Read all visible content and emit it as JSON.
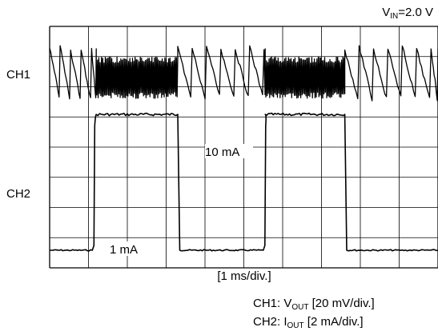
{
  "chart_data": {
    "type": "line",
    "title": "",
    "xlabel": "[1 ms/div.]",
    "x_div_unit": "ms/div.",
    "x_range_div": [
      0,
      10
    ],
    "y_divisions": 8,
    "grid": true,
    "vin": {
      "prefix": "V",
      "sub": "IN",
      "suffix": "=2.0 V"
    },
    "channels": [
      {
        "name": "CH1",
        "label": "CH1",
        "legend": {
          "prefix": "CH1: V",
          "sub": "OUT",
          "suffix": " [20 mV/div.]"
        },
        "scale": "20 mV/div."
      },
      {
        "name": "CH2",
        "label": "CH2",
        "legend": {
          "prefix": "CH2: I",
          "sub": "OUT",
          "suffix": " [2 mA/div.]"
        },
        "scale": "2 mA/div."
      }
    ],
    "annotations": [
      {
        "text": "10 mA",
        "channel": "CH2",
        "value_mA": 10
      },
      {
        "text": "1 mA",
        "channel": "CH2",
        "value_mA": 1
      }
    ],
    "series": [
      {
        "name": "CH2",
        "x": [
          0,
          1.1,
          1.2,
          3.3,
          3.35,
          5.5,
          5.55,
          7.6,
          7.65,
          10
        ],
        "y": [
          1,
          1,
          10,
          10,
          1,
          1,
          10,
          10,
          1,
          1
        ]
      },
      {
        "name": "CH1",
        "segments": [
          {
            "kind": "sawtooth",
            "x": [
              0,
              1.2
            ],
            "period": 0.27
          },
          {
            "kind": "burst",
            "x": [
              1.2,
              3.3
            ]
          },
          {
            "kind": "sawtooth",
            "x": [
              3.3,
              5.55
            ],
            "period": 0.37
          },
          {
            "kind": "burst",
            "x": [
              5.55,
              7.6
            ]
          },
          {
            "kind": "sawtooth",
            "x": [
              7.6,
              10
            ],
            "period": 0.37
          }
        ]
      }
    ]
  }
}
